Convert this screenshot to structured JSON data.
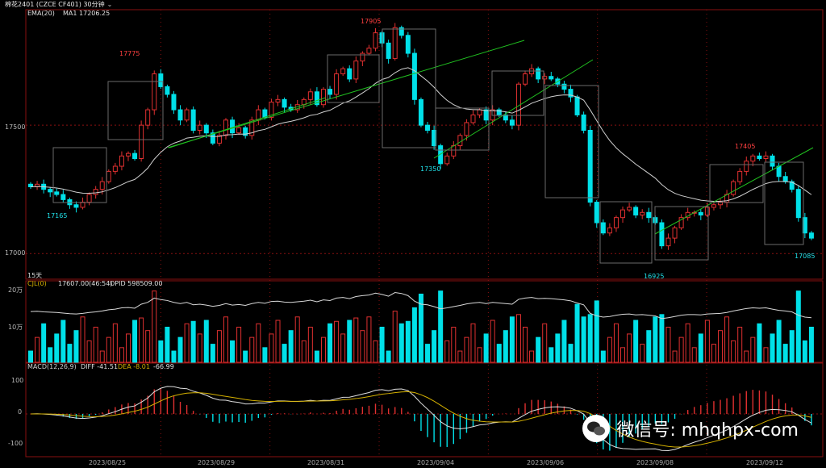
{
  "title": {
    "symbol": "棉花2401",
    "contract": "(CZCE CF401)",
    "period": "30分钟"
  },
  "price_panel": {
    "ema_label": "EMA(20)",
    "ma_label": "MA1 17206.25",
    "y_ticks": [
      "17500",
      "17000"
    ],
    "annotations": [
      "17775",
      "17905",
      "17350",
      "17165",
      "17405",
      "16925",
      "17085"
    ],
    "period_tag": "15天"
  },
  "volume_panel": {
    "label": "CJL(0)",
    "value": "17607.00(46:54)",
    "opid": "OPID 598509.00",
    "y_ticks": [
      "20万",
      "10万"
    ]
  },
  "macd_panel": {
    "label": "MACD(12,26,9)",
    "diff": "DIFF -41.51",
    "dea": "DEA -8.01",
    "macd": "-66.99",
    "y_ticks": [
      "100",
      "0",
      "-100"
    ]
  },
  "x_dates": [
    "2023/08/25",
    "2023/08/29",
    "2023/08/31",
    "2023/09/04",
    "2023/09/06",
    "2023/09/08",
    "2023/09/12"
  ],
  "watermark": "微信号: mhqhpx-com",
  "colors": {
    "up": "#e03030",
    "down": "#00e0e8",
    "grid": "#8a1010",
    "ema": "#d0d0d0",
    "trend": "#20c020",
    "dea": "#d4b000"
  },
  "chart_data": {
    "type": "candlestick",
    "ohlc_close_estimate": [
      17260,
      17270,
      17250,
      17240,
      17230,
      17210,
      17190,
      17180,
      17200,
      17230,
      17250,
      17280,
      17320,
      17340,
      17380,
      17390,
      17370,
      17500,
      17560,
      17700,
      17650,
      17620,
      17560,
      17520,
      17560,
      17480,
      17500,
      17470,
      17430,
      17460,
      17520,
      17470,
      17490,
      17460,
      17520,
      17560,
      17530,
      17590,
      17600,
      17570,
      17560,
      17580,
      17600,
      17630,
      17580,
      17640,
      17620,
      17700,
      17720,
      17680,
      17750,
      17780,
      17800,
      17860,
      17820,
      17760,
      17880,
      17850,
      17780,
      17600,
      17500,
      17480,
      17420,
      17350,
      17380,
      17420,
      17460,
      17510,
      17540,
      17560,
      17520,
      17560,
      17540,
      17520,
      17500,
      17660,
      17700,
      17720,
      17680,
      17690,
      17680,
      17660,
      17640,
      17610,
      17540,
      17480,
      17200,
      17120,
      17080,
      17100,
      17140,
      17170,
      17180,
      17150,
      17160,
      17140,
      17120,
      17030,
      17060,
      17100,
      17140,
      17160,
      17160,
      17150,
      17180,
      17190,
      17200,
      17230,
      17280,
      17320,
      17360,
      17380,
      17370,
      17380,
      17340,
      17300,
      17280,
      17250,
      17140,
      17080,
      17060
    ],
    "y_range": [
      16900,
      17950
    ],
    "volume_max": "20万",
    "macd_range": [
      -150,
      150
    ]
  }
}
